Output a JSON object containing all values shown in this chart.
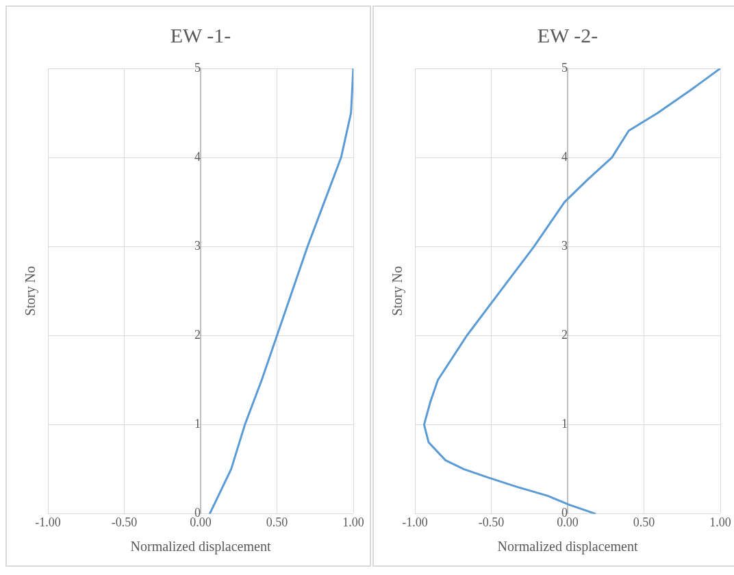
{
  "chart_data": [
    {
      "type": "line",
      "title": "EW -1-",
      "xlabel": "Normalized displacement",
      "ylabel": "Story No",
      "xlim": [
        -1,
        1
      ],
      "xticks": [
        {
          "value": -1,
          "label": "-1.00"
        },
        {
          "value": -0.5,
          "label": "-0.50"
        },
        {
          "value": 0,
          "label": "0.00"
        },
        {
          "value": 0.5,
          "label": "0.50"
        },
        {
          "value": 1,
          "label": "1.00"
        }
      ],
      "ylim": [
        0,
        5
      ],
      "yticks": [
        0,
        1,
        2,
        3,
        4,
        5
      ],
      "grid": true,
      "legend": false,
      "marker": "none",
      "line_style": "solid",
      "series": [
        {
          "color": "#5b9bd5",
          "x": [
            0.06,
            0.2,
            0.29,
            0.4,
            0.5,
            0.6,
            0.7,
            0.81,
            0.92,
            0.985,
            1.0
          ],
          "values": [
            0,
            0.5,
            1,
            1.5,
            2,
            2.5,
            3,
            3.5,
            4,
            4.5,
            5
          ]
        }
      ]
    },
    {
      "type": "line",
      "title": "EW -2-",
      "xlabel": "Normalized displacement",
      "ylabel": "Story No",
      "xlim": [
        -1,
        1
      ],
      "xticks": [
        {
          "value": -1,
          "label": "-1.00"
        },
        {
          "value": -0.5,
          "label": "-0.50"
        },
        {
          "value": 0,
          "label": "0.00"
        },
        {
          "value": 0.5,
          "label": "0.50"
        },
        {
          "value": 1,
          "label": "1.00"
        }
      ],
      "ylim": [
        0,
        5
      ],
      "yticks": [
        0,
        1,
        2,
        3,
        4,
        5
      ],
      "grid": true,
      "legend": false,
      "marker": "none",
      "line_style": "solid",
      "series": [
        {
          "color": "#5b9bd5",
          "x": [
            0.18,
            0.01,
            -0.13,
            -0.33,
            -0.51,
            -0.68,
            -0.8,
            -0.91,
            -0.94,
            -0.9,
            -0.85,
            -0.66,
            -0.44,
            -0.22,
            -0.02,
            0.13,
            0.29,
            0.4,
            0.59,
            0.8,
            1.0
          ],
          "values": [
            0,
            0.1,
            0.2,
            0.3,
            0.4,
            0.5,
            0.6,
            0.8,
            1,
            1.25,
            1.5,
            2,
            2.5,
            3,
            3.5,
            3.75,
            4,
            4.3,
            4.5,
            4.75,
            5
          ]
        }
      ]
    }
  ]
}
